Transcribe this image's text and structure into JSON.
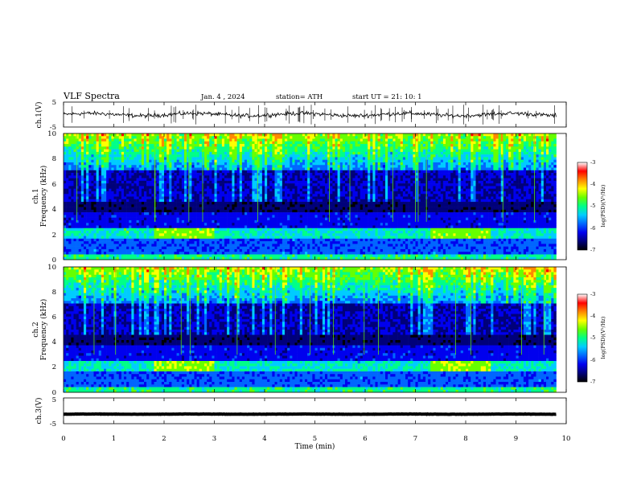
{
  "header": {
    "title": "VLF  Spectra",
    "date": "Jan.  4  , 2024",
    "station": "station= ATH",
    "start": "start  UT  =    21: 10: 1"
  },
  "colors": {
    "axis": "#000000",
    "trace": "#000000",
    "colormap": [
      "#000000",
      "#00007a",
      "#0000ee",
      "#0066ff",
      "#00ccff",
      "#00ff88",
      "#66ff00",
      "#ffff00",
      "#ff8800",
      "#ff0000",
      "#ffffff"
    ]
  },
  "chart_data": [
    {
      "type": "line",
      "id": "ch1-waveform",
      "ylabel": "ch.1(V)",
      "ylim": [
        -5,
        5
      ],
      "yticks": [
        "5",
        "-5"
      ],
      "xlim": [
        0,
        10
      ],
      "approx_level": 0,
      "noise_amplitude": 1.2
    },
    {
      "type": "heatmap",
      "id": "ch1-spectrogram",
      "ylabel": "ch.1",
      "ylabel2": "Frequency  (kHz)",
      "ylim": [
        0,
        10
      ],
      "yticks": [
        "0",
        "2",
        "4",
        "6",
        "8",
        "10"
      ],
      "xlim": [
        0,
        10
      ],
      "data_end_min": 9.8,
      "colorbar": {
        "label": "log(PSD)(V²/Hz)",
        "range": [
          -7,
          -3
        ],
        "ticks": [
          "-3",
          "-4",
          "-5",
          "-6",
          "-7"
        ]
      }
    },
    {
      "type": "heatmap",
      "id": "ch2-spectrogram",
      "ylabel": "ch.2",
      "ylabel2": "Frequency  (kHz)",
      "ylim": [
        0,
        10
      ],
      "yticks": [
        "0",
        "2",
        "4",
        "6",
        "8",
        "10"
      ],
      "xlim": [
        0,
        10
      ],
      "data_end_min": 9.8,
      "colorbar": {
        "label": "log(PSD)(V²/Hz)",
        "range": [
          -7,
          -3
        ],
        "ticks": [
          "-3",
          "-4",
          "-5",
          "-6",
          "-7"
        ]
      }
    },
    {
      "type": "line",
      "id": "ch3-waveform",
      "ylabel": "ch.3(V)",
      "ylim": [
        -5,
        5
      ],
      "yticks": [
        "5",
        "-5"
      ],
      "xlim": [
        0,
        10
      ],
      "approx_level": -1.3,
      "noise_amplitude": 0.1
    }
  ],
  "xaxis": {
    "label": "Time  (min)",
    "ticks": [
      "0",
      "1",
      "2",
      "3",
      "4",
      "5",
      "6",
      "7",
      "8",
      "9",
      "10"
    ]
  }
}
